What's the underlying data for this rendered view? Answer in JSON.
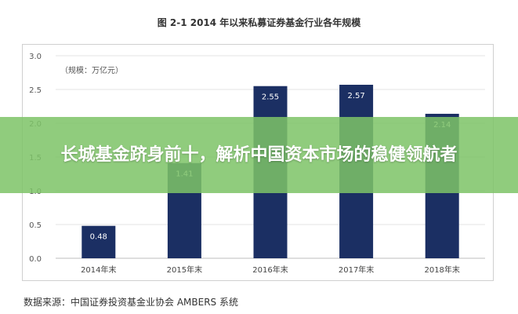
{
  "figure_title": "图 2-1 2014 年以来私募证券基金行业各年规模",
  "unit_label": "（规模：万亿元）",
  "source_text": "数据来源：中国证券投资基金业协会 AMBERS 系统",
  "banner_text": "长城基金跻身前十，解析中国资本市场的稳健领航者",
  "colors": {
    "bar": "#1b2f63",
    "banner": "#7ec468",
    "grid": "#e3e3e3"
  },
  "chart_data": {
    "type": "bar",
    "categories": [
      "2014年末",
      "2015年末",
      "2016年末",
      "2017年末",
      "2018年末"
    ],
    "values": [
      0.48,
      1.41,
      2.55,
      2.57,
      2.14
    ],
    "data_labels": [
      "0.48",
      "1.41",
      "2.55",
      "2.57",
      "2.14"
    ],
    "yticks": [
      "0.0",
      "0.5",
      "1.0",
      "1.5",
      "2.0",
      "2.5",
      "3.0"
    ],
    "ylim": [
      0,
      3
    ],
    "grid": true
  }
}
